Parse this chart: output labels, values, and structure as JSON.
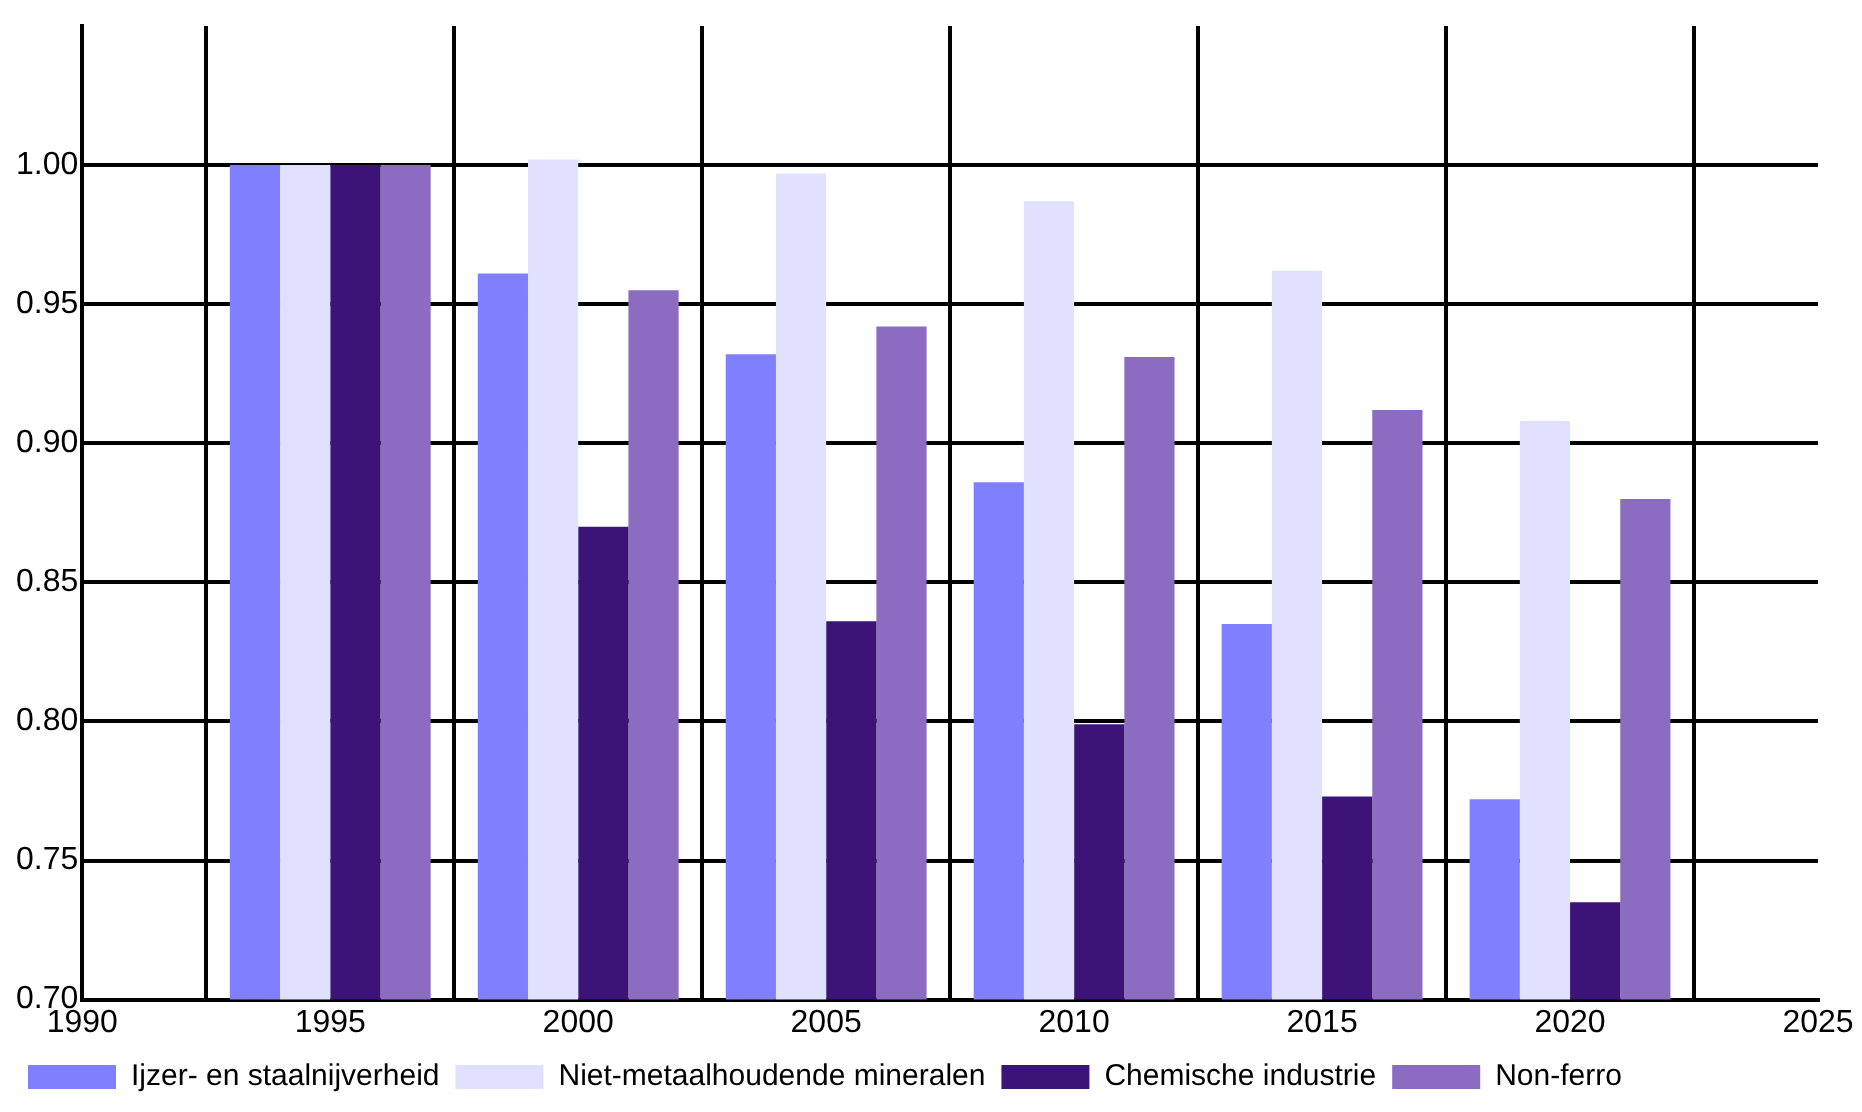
{
  "chart_data": {
    "type": "bar",
    "x": [
      1995,
      2000,
      2005,
      2010,
      2015,
      2020
    ],
    "series": [
      {
        "name": "Ijzer- en staalnijverheid",
        "color": "#8080ff",
        "values": [
          1.0,
          0.961,
          0.932,
          0.886,
          0.835,
          0.772
        ]
      },
      {
        "name": "Niet-metaalhoudende mineralen",
        "color": "#e0e0ff",
        "values": [
          1.0,
          1.002,
          0.997,
          0.987,
          0.962,
          0.908
        ]
      },
      {
        "name": "Chemische industrie",
        "color": "#3c1478",
        "values": [
          1.0,
          0.87,
          0.836,
          0.799,
          0.773,
          0.735
        ]
      },
      {
        "name": "Non-ferro",
        "color": "#8c6cc0",
        "values": [
          1.0,
          0.955,
          0.942,
          0.931,
          0.912,
          0.88
        ]
      }
    ],
    "xlim": [
      1990,
      2025
    ],
    "xticks": [
      1990,
      1995,
      2000,
      2005,
      2010,
      2015,
      2020,
      2025
    ],
    "ylim": [
      0.7,
      1.05
    ],
    "yticks": [
      {
        "value": 0.7,
        "label": "0.70"
      },
      {
        "value": 0.75,
        "label": "0.75"
      },
      {
        "value": 0.8,
        "label": "0.80"
      },
      {
        "value": 0.85,
        "label": "0.85"
      },
      {
        "value": 0.9,
        "label": "0.90"
      },
      {
        "value": 0.95,
        "label": "0.95"
      },
      {
        "value": 1.0,
        "label": "1.00"
      }
    ],
    "grid": true,
    "legend": "bottom"
  }
}
